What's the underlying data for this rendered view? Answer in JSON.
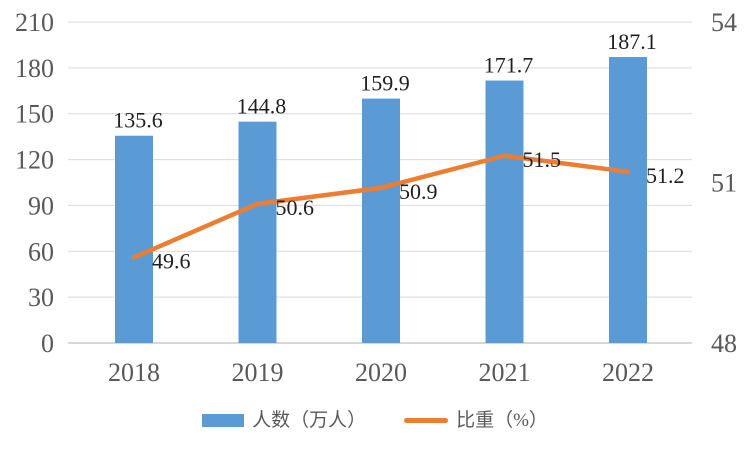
{
  "chart_data": {
    "type": "combo",
    "title": "",
    "categories": [
      "2018",
      "2019",
      "2020",
      "2021",
      "2022"
    ],
    "series": [
      {
        "name": "人数（万人）",
        "type": "bar",
        "axis": "left",
        "color": "#5B9BD5",
        "values": [
          135.6,
          144.8,
          159.9,
          171.7,
          187.1
        ],
        "labels": [
          "135.6",
          "144.8",
          "159.9",
          "171.7",
          "187.1"
        ]
      },
      {
        "name": "比重（%）",
        "type": "line",
        "axis": "right",
        "color": "#ED7D31",
        "values": [
          49.6,
          50.6,
          50.9,
          51.5,
          51.2
        ],
        "labels": [
          "49.6",
          "50.6",
          "50.9",
          "51.5",
          "51.2"
        ]
      }
    ],
    "left_axis": {
      "min": 0,
      "max": 210,
      "step": 30,
      "ticks": [
        0,
        30,
        60,
        90,
        120,
        150,
        180,
        210
      ]
    },
    "right_axis": {
      "min": 48,
      "max": 54,
      "step": 3,
      "ticks": [
        48,
        51,
        54
      ]
    },
    "grid": true,
    "legend_position": "bottom",
    "colors": {
      "grid": "#D9D9D9",
      "axis_line": "#BFBFBF",
      "tick_text": "#595959",
      "data_label": "#1F1F1F",
      "background": "#FFFFFF"
    }
  }
}
